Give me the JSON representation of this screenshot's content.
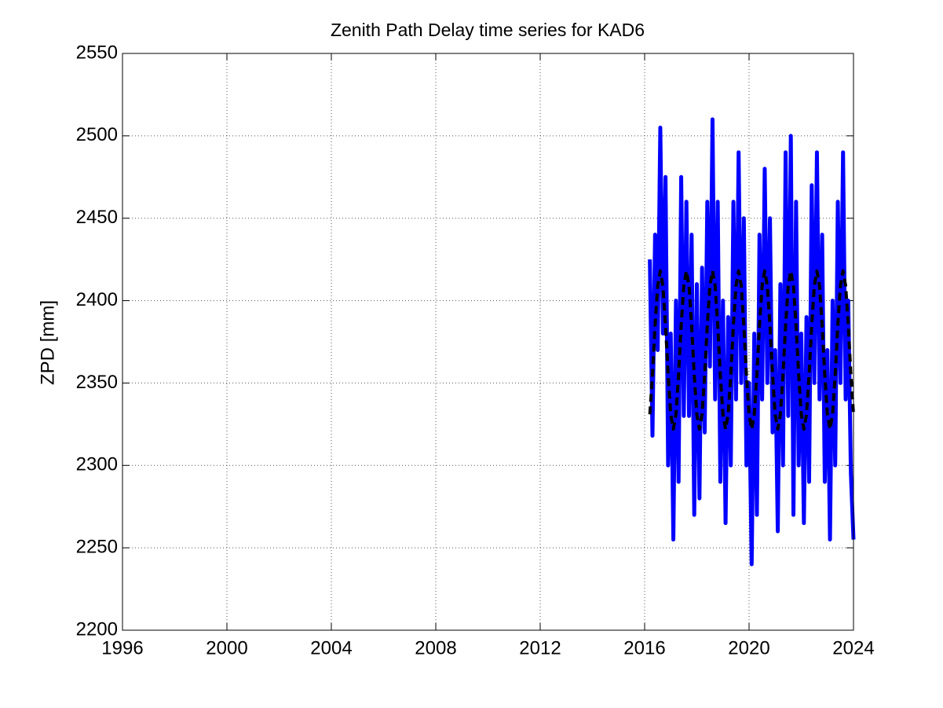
{
  "chart_data": {
    "type": "line",
    "title": "Zenith Path Delay time series for KAD6",
    "ylabel": "ZPD [mm]",
    "x": [
      2016.2,
      2016.3,
      2016.4,
      2016.5,
      2016.6,
      2016.7,
      2016.8,
      2016.9,
      2017.0,
      2017.1,
      2017.2,
      2017.3,
      2017.4,
      2017.5,
      2017.6,
      2017.7,
      2017.8,
      2017.9,
      2018.0,
      2018.1,
      2018.2,
      2018.3,
      2018.4,
      2018.5,
      2018.6,
      2018.7,
      2018.8,
      2018.9,
      2019.0,
      2019.1,
      2019.2,
      2019.3,
      2019.4,
      2019.5,
      2019.6,
      2019.7,
      2019.8,
      2019.9,
      2020.0,
      2020.1,
      2020.2,
      2020.3,
      2020.4,
      2020.5,
      2020.6,
      2020.7,
      2020.8,
      2020.9,
      2021.0,
      2021.1,
      2021.2,
      2021.3,
      2021.4,
      2021.5,
      2021.6,
      2021.7,
      2021.8,
      2021.9,
      2022.0,
      2022.1,
      2022.2,
      2022.3,
      2022.4,
      2022.5,
      2022.6,
      2022.7,
      2022.8,
      2022.9,
      2023.0,
      2023.1,
      2023.2,
      2023.3,
      2023.4,
      2023.5,
      2023.6,
      2023.7,
      2023.8,
      2023.9,
      2024.0
    ],
    "series": [
      {
        "color": "#0000ff",
        "width": 5,
        "dashed": false,
        "values": [
          2425,
          2318,
          2440,
          2370,
          2505,
          2380,
          2475,
          2300,
          2380,
          2255,
          2400,
          2290,
          2475,
          2330,
          2460,
          2330,
          2440,
          2270,
          2410,
          2280,
          2420,
          2320,
          2460,
          2360,
          2510,
          2340,
          2460,
          2290,
          2400,
          2265,
          2390,
          2300,
          2460,
          2340,
          2490,
          2350,
          2450,
          2300,
          2350,
          2240,
          2380,
          2270,
          2440,
          2340,
          2480,
          2350,
          2450,
          2320,
          2370,
          2260,
          2410,
          2300,
          2490,
          2330,
          2500,
          2270,
          2460,
          2300,
          2380,
          2265,
          2390,
          2290,
          2470,
          2350,
          2490,
          2340,
          2440,
          2290,
          2370,
          2255,
          2400,
          2300,
          2460,
          2350,
          2490,
          2340,
          2400,
          2295,
          2255
        ]
      },
      {
        "color": "#000000",
        "width": 4,
        "dashed": true,
        "values": [
          2331,
          2355,
          2385,
          2409,
          2418,
          2409,
          2385,
          2355,
          2331,
          2322,
          2331,
          2355,
          2385,
          2409,
          2418,
          2409,
          2385,
          2355,
          2331,
          2322,
          2331,
          2355,
          2385,
          2409,
          2418,
          2409,
          2385,
          2355,
          2331,
          2322,
          2331,
          2355,
          2385,
          2409,
          2418,
          2409,
          2385,
          2355,
          2331,
          2322,
          2331,
          2355,
          2385,
          2409,
          2418,
          2409,
          2385,
          2355,
          2331,
          2322,
          2331,
          2355,
          2385,
          2409,
          2418,
          2409,
          2385,
          2355,
          2331,
          2322,
          2331,
          2355,
          2385,
          2409,
          2418,
          2409,
          2385,
          2355,
          2331,
          2322,
          2331,
          2355,
          2385,
          2409,
          2418,
          2409,
          2385,
          2355,
          2331
        ]
      }
    ],
    "xlim": [
      1996,
      2024
    ],
    "xticks": [
      1996,
      2000,
      2004,
      2008,
      2012,
      2016,
      2020,
      2024
    ],
    "ylim": [
      2200,
      2550
    ],
    "yticks": [
      2200,
      2250,
      2300,
      2350,
      2400,
      2450,
      2500,
      2550
    ],
    "grid": true
  }
}
